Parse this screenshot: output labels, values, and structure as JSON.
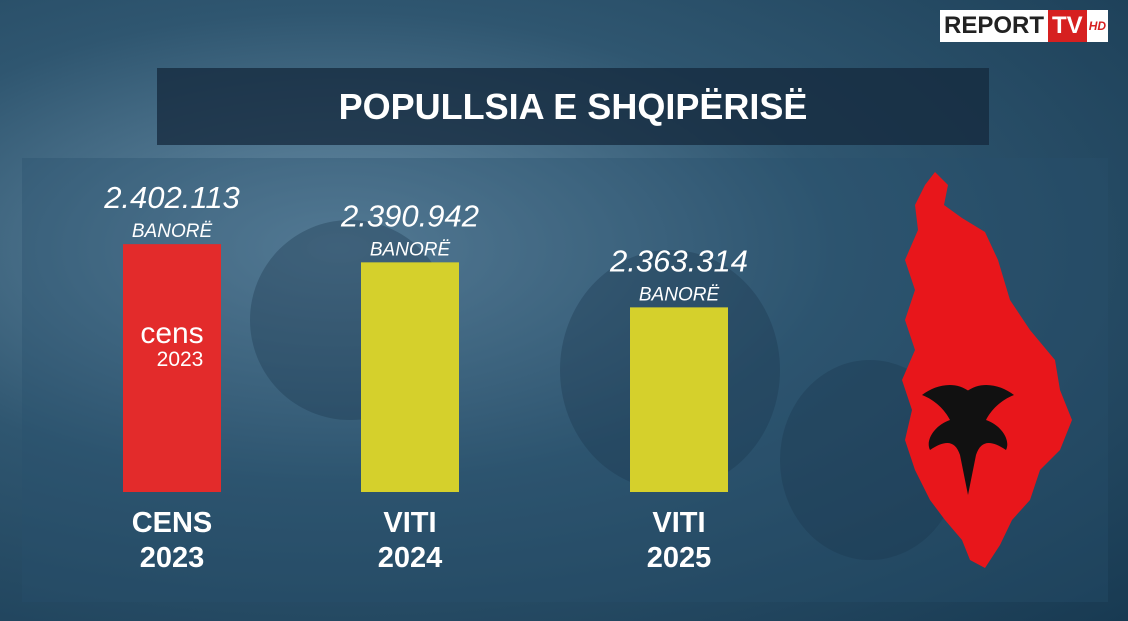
{
  "brand": {
    "name": "REPORT",
    "tv": "TV",
    "hd": "HD"
  },
  "chart_data": {
    "type": "bar",
    "title": "POPULLSIA E SHQIPËRISË",
    "categories": [
      "CENS 2023",
      "VITI 2024",
      "VITI 2025"
    ],
    "values": [
      2402113,
      2390942,
      2363314
    ],
    "value_labels": [
      "2.402.113",
      "2.390.942",
      "2.363.314"
    ],
    "unit_label": "BANORË",
    "colors": [
      "#e32b2b",
      "#d5d02c",
      "#d5d02c"
    ],
    "bar_logo": {
      "text": "cens",
      "year": "2023"
    },
    "ylim": [
      2250000,
      2420000
    ]
  }
}
